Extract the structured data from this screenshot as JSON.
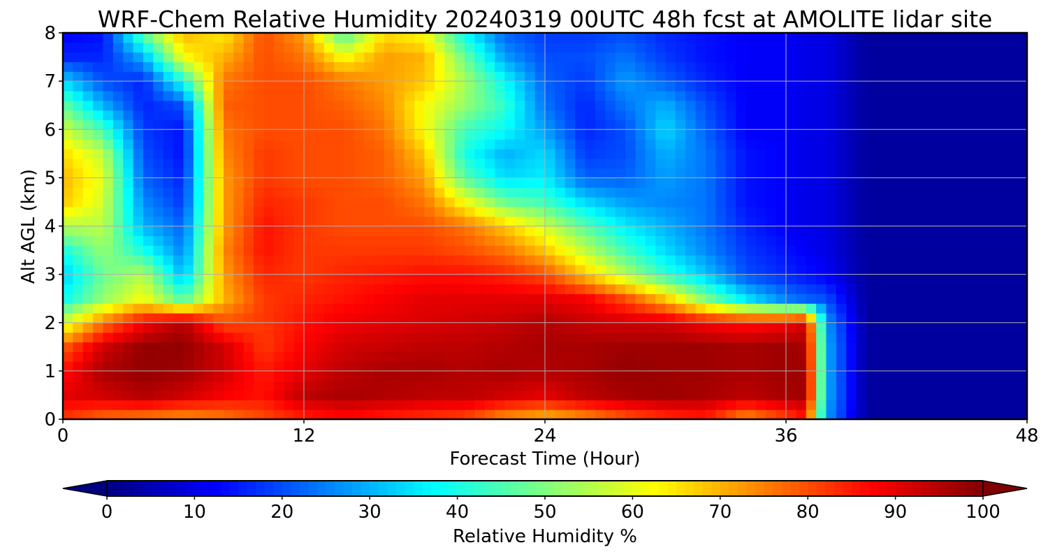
{
  "chart_data": {
    "type": "heatmap",
    "title": "WRF-Chem Relative Humidity 20240319 00UTC 48h fcst at AMOLITE lidar site",
    "xlabel": "Forecast Time (Hour)",
    "ylabel": "Alt AGL (km)",
    "xlim": [
      0,
      48
    ],
    "ylim": [
      0,
      8
    ],
    "x_ticks": [
      "0",
      "12",
      "24",
      "36",
      "48"
    ],
    "y_ticks": [
      "0",
      "1",
      "2",
      "3",
      "4",
      "5",
      "6",
      "7",
      "8"
    ],
    "grid": true,
    "colormap": "jet",
    "colorbar": {
      "label": "Relative Humidity %",
      "range": [
        0,
        100
      ],
      "ticks": [
        "0",
        "10",
        "20",
        "30",
        "40",
        "50",
        "60",
        "70",
        "80",
        "90",
        "100"
      ],
      "extend": "both",
      "orientation": "horizontal"
    },
    "x": [
      0,
      2,
      4,
      6,
      8,
      10,
      12,
      14,
      16,
      18,
      20,
      22,
      24,
      26,
      28,
      30,
      32,
      34,
      36,
      37,
      38,
      40,
      42,
      44,
      46,
      48
    ],
    "y": [
      0,
      0.5,
      1,
      1.5,
      2,
      2.5,
      3,
      3.5,
      4,
      4.5,
      5,
      5.5,
      6,
      6.5,
      7,
      7.5,
      8
    ],
    "z": [
      [
        82,
        76,
        74,
        72,
        75,
        80,
        84,
        86,
        84,
        82,
        80,
        72,
        68,
        72,
        78,
        82,
        84,
        72,
        80,
        85,
        28,
        3,
        3,
        3,
        3,
        3
      ],
      [
        90,
        92,
        95,
        92,
        88,
        86,
        94,
        96,
        95,
        94,
        94,
        92,
        90,
        94,
        96,
        97,
        96,
        94,
        96,
        97,
        30,
        3,
        3,
        3,
        3,
        3
      ],
      [
        86,
        96,
        98,
        97,
        92,
        85,
        90,
        94,
        96,
        96,
        95,
        96,
        95,
        96,
        98,
        97,
        97,
        96,
        97,
        97,
        30,
        3,
        3,
        3,
        3,
        3
      ],
      [
        78,
        92,
        98,
        98,
        92,
        82,
        88,
        92,
        93,
        94,
        94,
        95,
        96,
        96,
        97,
        97,
        97,
        96,
        97,
        96,
        30,
        3,
        3,
        3,
        3,
        3
      ],
      [
        58,
        76,
        88,
        95,
        80,
        82,
        86,
        89,
        90,
        91,
        92,
        93,
        95,
        93,
        92,
        92,
        88,
        86,
        88,
        92,
        28,
        3,
        3,
        3,
        3,
        3
      ],
      [
        38,
        52,
        62,
        45,
        70,
        82,
        84,
        86,
        88,
        90,
        90,
        90,
        90,
        88,
        80,
        68,
        50,
        35,
        25,
        22,
        20,
        3,
        3,
        3,
        3,
        3
      ],
      [
        32,
        48,
        55,
        30,
        72,
        84,
        82,
        84,
        85,
        86,
        86,
        84,
        80,
        68,
        55,
        42,
        32,
        20,
        16,
        14,
        12,
        3,
        3,
        3,
        3,
        3
      ],
      [
        40,
        52,
        40,
        25,
        74,
        86,
        82,
        82,
        82,
        82,
        80,
        76,
        68,
        56,
        44,
        34,
        26,
        18,
        14,
        12,
        10,
        3,
        3,
        3,
        3,
        3
      ],
      [
        55,
        56,
        30,
        22,
        72,
        86,
        82,
        80,
        80,
        80,
        76,
        68,
        58,
        46,
        36,
        30,
        24,
        16,
        12,
        10,
        10,
        3,
        3,
        3,
        3,
        3
      ],
      [
        68,
        58,
        26,
        18,
        72,
        84,
        82,
        80,
        80,
        76,
        62,
        48,
        44,
        34,
        28,
        26,
        24,
        14,
        12,
        10,
        10,
        3,
        3,
        3,
        3,
        3
      ],
      [
        70,
        60,
        22,
        16,
        72,
        82,
        80,
        80,
        78,
        72,
        46,
        34,
        36,
        22,
        22,
        28,
        24,
        14,
        12,
        10,
        10,
        3,
        3,
        3,
        3,
        3
      ],
      [
        66,
        56,
        20,
        14,
        74,
        82,
        80,
        80,
        78,
        68,
        40,
        30,
        34,
        18,
        20,
        30,
        24,
        14,
        12,
        10,
        10,
        3,
        3,
        3,
        3,
        3
      ],
      [
        58,
        44,
        18,
        14,
        76,
        80,
        80,
        80,
        76,
        62,
        44,
        38,
        28,
        16,
        20,
        34,
        22,
        12,
        12,
        10,
        10,
        3,
        3,
        3,
        3,
        3
      ],
      [
        48,
        30,
        16,
        20,
        78,
        80,
        80,
        78,
        74,
        62,
        52,
        42,
        24,
        16,
        24,
        30,
        20,
        12,
        12,
        10,
        10,
        3,
        3,
        3,
        3,
        3
      ],
      [
        34,
        20,
        16,
        40,
        76,
        80,
        80,
        76,
        72,
        68,
        54,
        38,
        22,
        18,
        28,
        22,
        16,
        12,
        12,
        10,
        10,
        3,
        3,
        3,
        3,
        3
      ],
      [
        16,
        16,
        30,
        62,
        70,
        80,
        76,
        62,
        72,
        70,
        48,
        28,
        20,
        20,
        24,
        18,
        14,
        12,
        12,
        10,
        10,
        3,
        3,
        3,
        3,
        3
      ],
      [
        12,
        14,
        48,
        70,
        64,
        80,
        72,
        44,
        66,
        62,
        38,
        22,
        18,
        18,
        20,
        16,
        14,
        12,
        12,
        10,
        10,
        3,
        3,
        3,
        3,
        3
      ]
    ]
  }
}
